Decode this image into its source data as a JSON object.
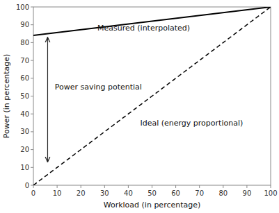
{
  "chart_data": {
    "type": "line",
    "x": [
      0,
      100
    ],
    "series": [
      {
        "values": [
          0,
          100
        ],
        "color": "#000000",
        "line_style": "dashed"
      },
      {
        "values": [
          84,
          100
        ],
        "color": "#000000",
        "line_style": "solid"
      }
    ],
    "annotations": [
      {
        "text": "Power saving potential",
        "x": 9,
        "y": 55,
        "arrow": {
          "x": 6,
          "y": [
            13,
            83
          ]
        }
      },
      {
        "text": "Measured (interpolated)",
        "x": 27,
        "y": 86
      },
      {
        "text": "Ideal (energy proportional)",
        "x": 45,
        "y": 35
      }
    ],
    "x_label": "Workload (in percentage)",
    "y_label": "Power (in percentage)",
    "xlim": [
      0,
      100
    ],
    "ylim": [
      0,
      100
    ],
    "xticks": [
      0,
      10,
      20,
      30,
      40,
      50,
      60,
      70,
      80,
      90,
      100
    ],
    "yticks": [
      0,
      10,
      20,
      30,
      40,
      50,
      60,
      70,
      80,
      90,
      100
    ],
    "grid": false
  }
}
